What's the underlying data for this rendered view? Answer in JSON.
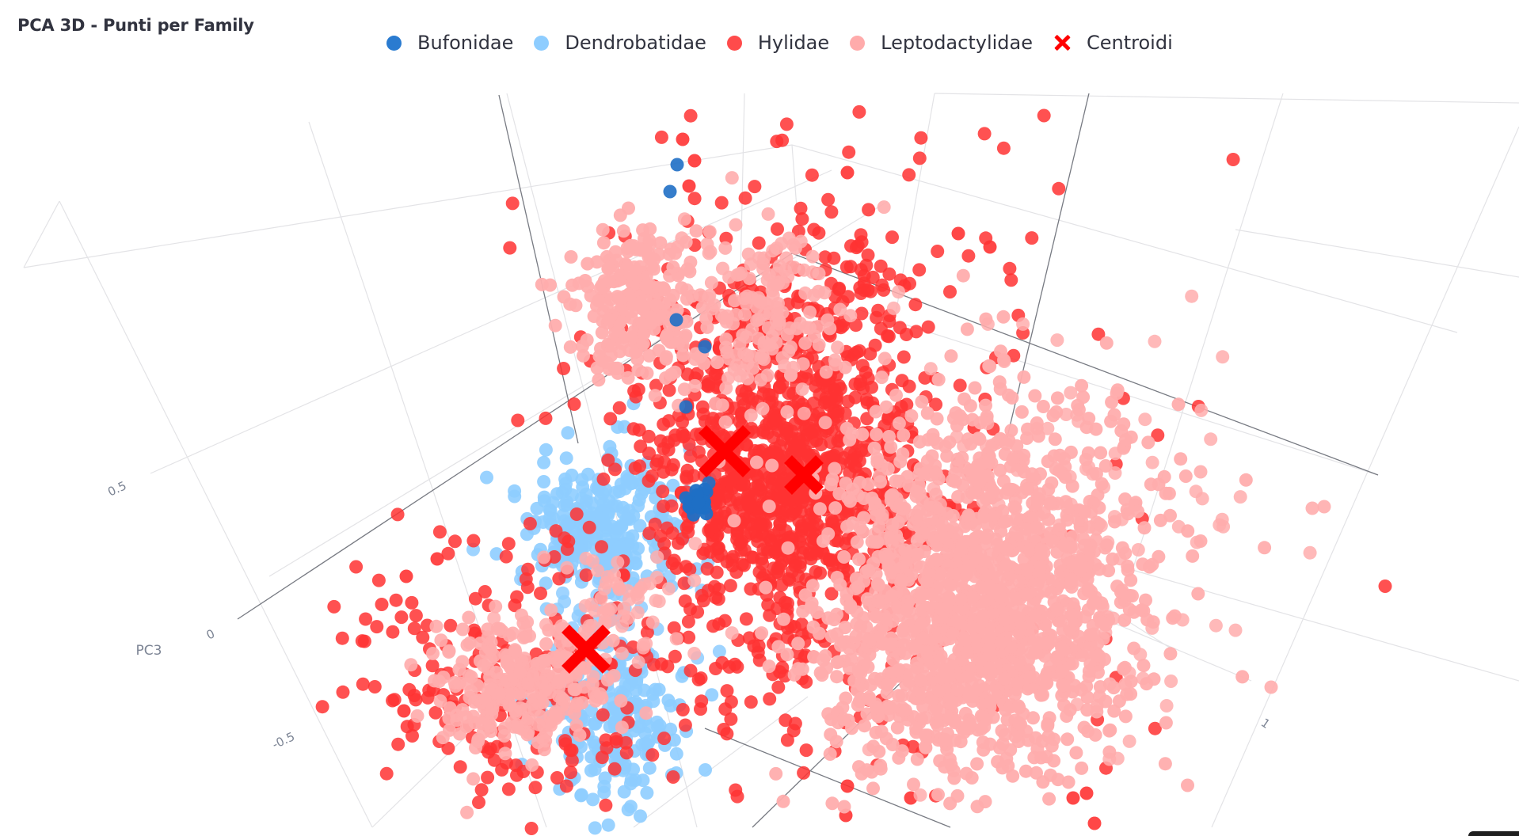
{
  "chart_title": "PCA 3D - Punti per Family",
  "legend": [
    {
      "label": "Bufonidae",
      "color": "#1f6fc5",
      "marker": "circle"
    },
    {
      "label": "Dendrobatidae",
      "color": "#8ecdff",
      "marker": "circle"
    },
    {
      "label": "Hylidae",
      "color": "#ff3333",
      "marker": "circle"
    },
    {
      "label": "Leptodactylidae",
      "color": "#ffadad",
      "marker": "circle"
    },
    {
      "label": "Centroidi",
      "color": "#ff0000",
      "marker": "x"
    }
  ],
  "chart_data": {
    "type": "scatter",
    "dimensions": 3,
    "title": "PCA 3D - Punti per Family",
    "axes": {
      "z": {
        "label": "PC3",
        "ticks": [
          "0.5",
          "0",
          "-0.5"
        ]
      },
      "y": {
        "label": "",
        "ticks": [
          "1"
        ]
      }
    },
    "grid": true,
    "legend_position": "top-center",
    "series": [
      {
        "name": "Bufonidae",
        "color": "#1f6fc5",
        "marker": "circle"
      },
      {
        "name": "Dendrobatidae",
        "color": "#8ecdff",
        "marker": "circle"
      },
      {
        "name": "Hylidae",
        "color": "#ff3333",
        "marker": "circle"
      },
      {
        "name": "Leptodactylidae",
        "color": "#ffadad",
        "marker": "circle"
      },
      {
        "name": "Centroidi",
        "color": "#ff0000",
        "marker": "x"
      }
    ]
  }
}
